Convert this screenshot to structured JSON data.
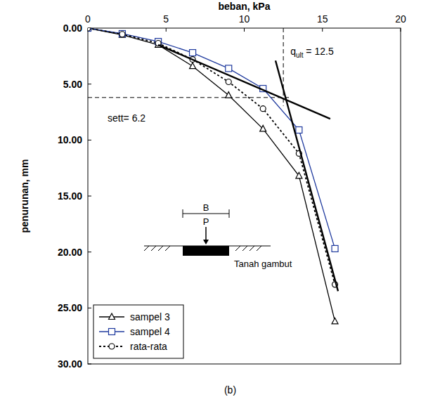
{
  "chart_data": {
    "type": "line",
    "x_label": "beban, kPa",
    "y_label": "penurunan, mm",
    "caption": "(b)",
    "x": [
      0,
      2.2,
      4.5,
      6.7,
      9,
      11.2,
      13.5,
      15.8
    ],
    "series": [
      {
        "name": "sampel 3",
        "color": "#000000",
        "marker": "triangle",
        "line_style": "solid",
        "values": [
          0,
          0.6,
          1.5,
          3.4,
          6.0,
          9.0,
          13.2,
          26.2
        ]
      },
      {
        "name": "sampel 4",
        "color": "#1f3a9e",
        "marker": "square",
        "line_style": "solid",
        "values": [
          0,
          0.5,
          1.2,
          2.2,
          3.6,
          5.4,
          9.1,
          19.7
        ]
      },
      {
        "name": "rata-rata",
        "color": "#000000",
        "marker": "circle",
        "line_style": "dotted",
        "values": [
          0,
          0.55,
          1.35,
          2.8,
          4.8,
          7.2,
          11.2,
          22.9
        ]
      }
    ],
    "xlim": [
      0,
      20
    ],
    "xticks": [
      0,
      5,
      10,
      15,
      20
    ],
    "ylim": [
      0,
      30
    ],
    "yticks": [
      {
        "value": 0,
        "label": "0.00"
      },
      {
        "value": 5,
        "label": "5.00"
      },
      {
        "value": 10,
        "label": "10.00"
      },
      {
        "value": 15,
        "label": "15.00"
      },
      {
        "value": 20,
        "label": "20.00"
      },
      {
        "value": 25,
        "label": "25.00"
      },
      {
        "value": 30,
        "label": "30.00"
      }
    ],
    "grid": false,
    "legend": "lower left",
    "tangent_lines": [
      {
        "x": [
          4.5,
          15.5
        ],
        "y": [
          1.5,
          8.1
        ]
      },
      {
        "x": [
          12.0,
          16.0
        ],
        "y": [
          2.9,
          23.5
        ]
      }
    ],
    "reference_lines": [
      {
        "axis": "x",
        "value": 12.5,
        "label": "q",
        "label_sub": "ult",
        "label_suffix": " = 12.5"
      },
      {
        "axis": "y",
        "value": 6.2,
        "label": "sett= 6.2"
      }
    ],
    "inset": {
      "width_label": "B",
      "load_label": "P",
      "soil_label": "Tanah gambut"
    }
  }
}
